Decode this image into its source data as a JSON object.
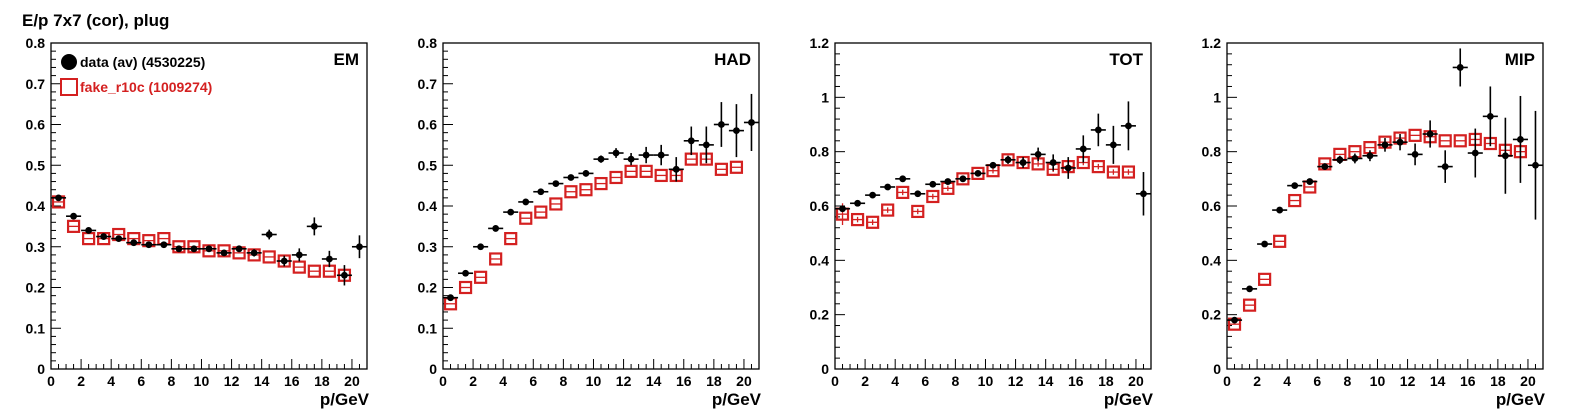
{
  "figure": {
    "title": "E/p 7x7 (cor), plug"
  },
  "legend": [
    {
      "label": "data (av) (4530225)",
      "color": "#000000",
      "marker": "filled-circle"
    },
    {
      "label": "fake_r10c (1009274)",
      "color": "#d42020",
      "marker": "open-square"
    }
  ],
  "chart_data": [
    {
      "type": "scatter",
      "panel_label": "EM",
      "xlabel": "p/GeV",
      "xlim": [
        0,
        21
      ],
      "ylim": [
        0,
        0.8
      ],
      "xticks": [
        "0",
        "2",
        "4",
        "6",
        "8",
        "10",
        "12",
        "14",
        "16",
        "18",
        "20"
      ],
      "yticks": [
        "0",
        "0.1",
        "0.2",
        "0.3",
        "0.4",
        "0.5",
        "0.6",
        "0.7",
        "0.8"
      ],
      "x": [
        0.5,
        1.5,
        2.5,
        3.5,
        4.5,
        5.5,
        6.5,
        7.5,
        8.5,
        9.5,
        10.5,
        11.5,
        12.5,
        13.5,
        14.5,
        15.5,
        16.5,
        17.5,
        18.5,
        19.5,
        20.5
      ],
      "series": [
        {
          "name": "data (av) (4530225)",
          "values": [
            0.42,
            0.375,
            0.34,
            0.325,
            0.32,
            0.31,
            0.305,
            0.305,
            0.295,
            0.295,
            0.295,
            0.285,
            0.295,
            0.285,
            0.33,
            0.265,
            0.28,
            0.35,
            0.27,
            0.23,
            0.3
          ],
          "yerr": [
            0.004,
            0.004,
            0.004,
            0.004,
            0.004,
            0.004,
            0.004,
            0.004,
            0.005,
            0.005,
            0.006,
            0.007,
            0.008,
            0.009,
            0.012,
            0.013,
            0.016,
            0.022,
            0.02,
            0.025,
            0.028
          ]
        },
        {
          "name": "fake_r10c (1009274)",
          "values": [
            0.41,
            0.35,
            0.32,
            0.32,
            0.33,
            0.32,
            0.315,
            0.32,
            0.3,
            0.3,
            0.29,
            0.29,
            0.285,
            0.28,
            0.275,
            0.265,
            0.25,
            0.24,
            0.24,
            0.23,
            null
          ]
        }
      ]
    },
    {
      "type": "scatter",
      "panel_label": "HAD",
      "xlabel": "p/GeV",
      "xlim": [
        0,
        21
      ],
      "ylim": [
        0,
        0.8
      ],
      "xticks": [
        "0",
        "2",
        "4",
        "6",
        "8",
        "10",
        "12",
        "14",
        "16",
        "18",
        "20"
      ],
      "yticks": [
        "0",
        "0.1",
        "0.2",
        "0.3",
        "0.4",
        "0.5",
        "0.6",
        "0.7",
        "0.8"
      ],
      "x": [
        0.5,
        1.5,
        2.5,
        3.5,
        4.5,
        5.5,
        6.5,
        7.5,
        8.5,
        9.5,
        10.5,
        11.5,
        12.5,
        13.5,
        14.5,
        15.5,
        16.5,
        17.5,
        18.5,
        19.5,
        20.5
      ],
      "series": [
        {
          "name": "data (av) (4530225)",
          "values": [
            0.175,
            0.235,
            0.3,
            0.345,
            0.385,
            0.41,
            0.435,
            0.455,
            0.47,
            0.48,
            0.515,
            0.53,
            0.515,
            0.525,
            0.525,
            0.49,
            0.56,
            0.55,
            0.6,
            0.585,
            0.605
          ],
          "yerr": [
            0.004,
            0.004,
            0.004,
            0.004,
            0.004,
            0.005,
            0.005,
            0.006,
            0.007,
            0.008,
            0.009,
            0.012,
            0.015,
            0.02,
            0.025,
            0.03,
            0.035,
            0.045,
            0.055,
            0.065,
            0.07
          ]
        },
        {
          "name": "fake_r10c (1009274)",
          "values": [
            0.16,
            0.2,
            0.225,
            0.27,
            0.32,
            0.37,
            0.385,
            0.405,
            0.435,
            0.44,
            0.455,
            0.47,
            0.485,
            0.485,
            0.475,
            0.475,
            0.515,
            0.515,
            0.49,
            0.495,
            null
          ]
        }
      ]
    },
    {
      "type": "scatter",
      "panel_label": "TOT",
      "xlabel": "p/GeV",
      "xlim": [
        0,
        21
      ],
      "ylim": [
        0,
        1.2
      ],
      "xticks": [
        "0",
        "2",
        "4",
        "6",
        "8",
        "10",
        "12",
        "14",
        "16",
        "18",
        "20"
      ],
      "yticks": [
        "0",
        "0.2",
        "0.4",
        "0.6",
        "0.8",
        "1",
        "1.2"
      ],
      "x": [
        0.5,
        1.5,
        2.5,
        3.5,
        4.5,
        5.5,
        6.5,
        7.5,
        8.5,
        9.5,
        10.5,
        11.5,
        12.5,
        13.5,
        14.5,
        15.5,
        16.5,
        17.5,
        18.5,
        19.5,
        20.5
      ],
      "series": [
        {
          "name": "data (av) (4530225)",
          "values": [
            0.59,
            0.61,
            0.64,
            0.67,
            0.7,
            0.645,
            0.68,
            0.69,
            0.7,
            0.72,
            0.75,
            0.77,
            0.76,
            0.79,
            0.76,
            0.74,
            0.81,
            0.88,
            0.825,
            0.895,
            0.645
          ],
          "yerr": [
            0.005,
            0.005,
            0.005,
            0.005,
            0.006,
            0.006,
            0.007,
            0.008,
            0.009,
            0.01,
            0.012,
            0.015,
            0.02,
            0.025,
            0.03,
            0.04,
            0.05,
            0.06,
            0.07,
            0.09,
            0.08
          ]
        },
        {
          "name": "fake_r10c (1009274)",
          "values": [
            0.57,
            0.55,
            0.54,
            0.585,
            0.65,
            0.58,
            0.635,
            0.665,
            0.7,
            0.72,
            0.73,
            0.77,
            0.76,
            0.755,
            0.735,
            0.745,
            0.76,
            0.745,
            0.725,
            0.725,
            null
          ],
          "yerr": [
            0.04,
            0.01,
            0.01,
            0.01,
            0.01,
            0.01,
            0.01,
            0.01,
            0.01,
            0.01,
            0.01,
            0.01,
            0.01,
            0.01,
            0.01,
            0.01,
            0.01,
            0.01,
            0.01,
            0.01,
            null
          ]
        }
      ]
    },
    {
      "type": "scatter",
      "panel_label": "MIP",
      "xlabel": "p/GeV",
      "xlim": [
        0,
        21
      ],
      "ylim": [
        0,
        1.2
      ],
      "xticks": [
        "0",
        "2",
        "4",
        "6",
        "8",
        "10",
        "12",
        "14",
        "16",
        "18",
        "20"
      ],
      "yticks": [
        "0",
        "0.2",
        "0.4",
        "0.6",
        "0.8",
        "1",
        "1.2"
      ],
      "x": [
        0.5,
        1.5,
        2.5,
        3.5,
        4.5,
        5.5,
        6.5,
        7.5,
        8.5,
        9.5,
        10.5,
        11.5,
        12.5,
        13.5,
        14.5,
        15.5,
        16.5,
        17.5,
        18.5,
        19.5,
        20.5
      ],
      "series": [
        {
          "name": "data (av) (4530225)",
          "values": [
            0.18,
            0.295,
            0.46,
            0.585,
            0.675,
            0.69,
            0.745,
            0.77,
            0.775,
            0.785,
            0.825,
            0.835,
            0.79,
            0.865,
            0.745,
            1.11,
            0.795,
            0.93,
            0.785,
            0.845,
            0.75
          ],
          "yerr": [
            0.005,
            0.006,
            0.007,
            0.008,
            0.009,
            0.01,
            0.012,
            0.015,
            0.018,
            0.02,
            0.025,
            0.03,
            0.04,
            0.05,
            0.06,
            0.07,
            0.09,
            0.11,
            0.14,
            0.16,
            0.2
          ]
        },
        {
          "name": "fake_r10c (1009274)",
          "values": [
            0.165,
            0.235,
            0.33,
            0.47,
            0.62,
            0.67,
            0.755,
            0.79,
            0.8,
            0.815,
            0.835,
            0.85,
            0.86,
            0.855,
            0.84,
            0.84,
            0.845,
            0.83,
            0.805,
            0.8,
            null
          ]
        }
      ]
    }
  ]
}
